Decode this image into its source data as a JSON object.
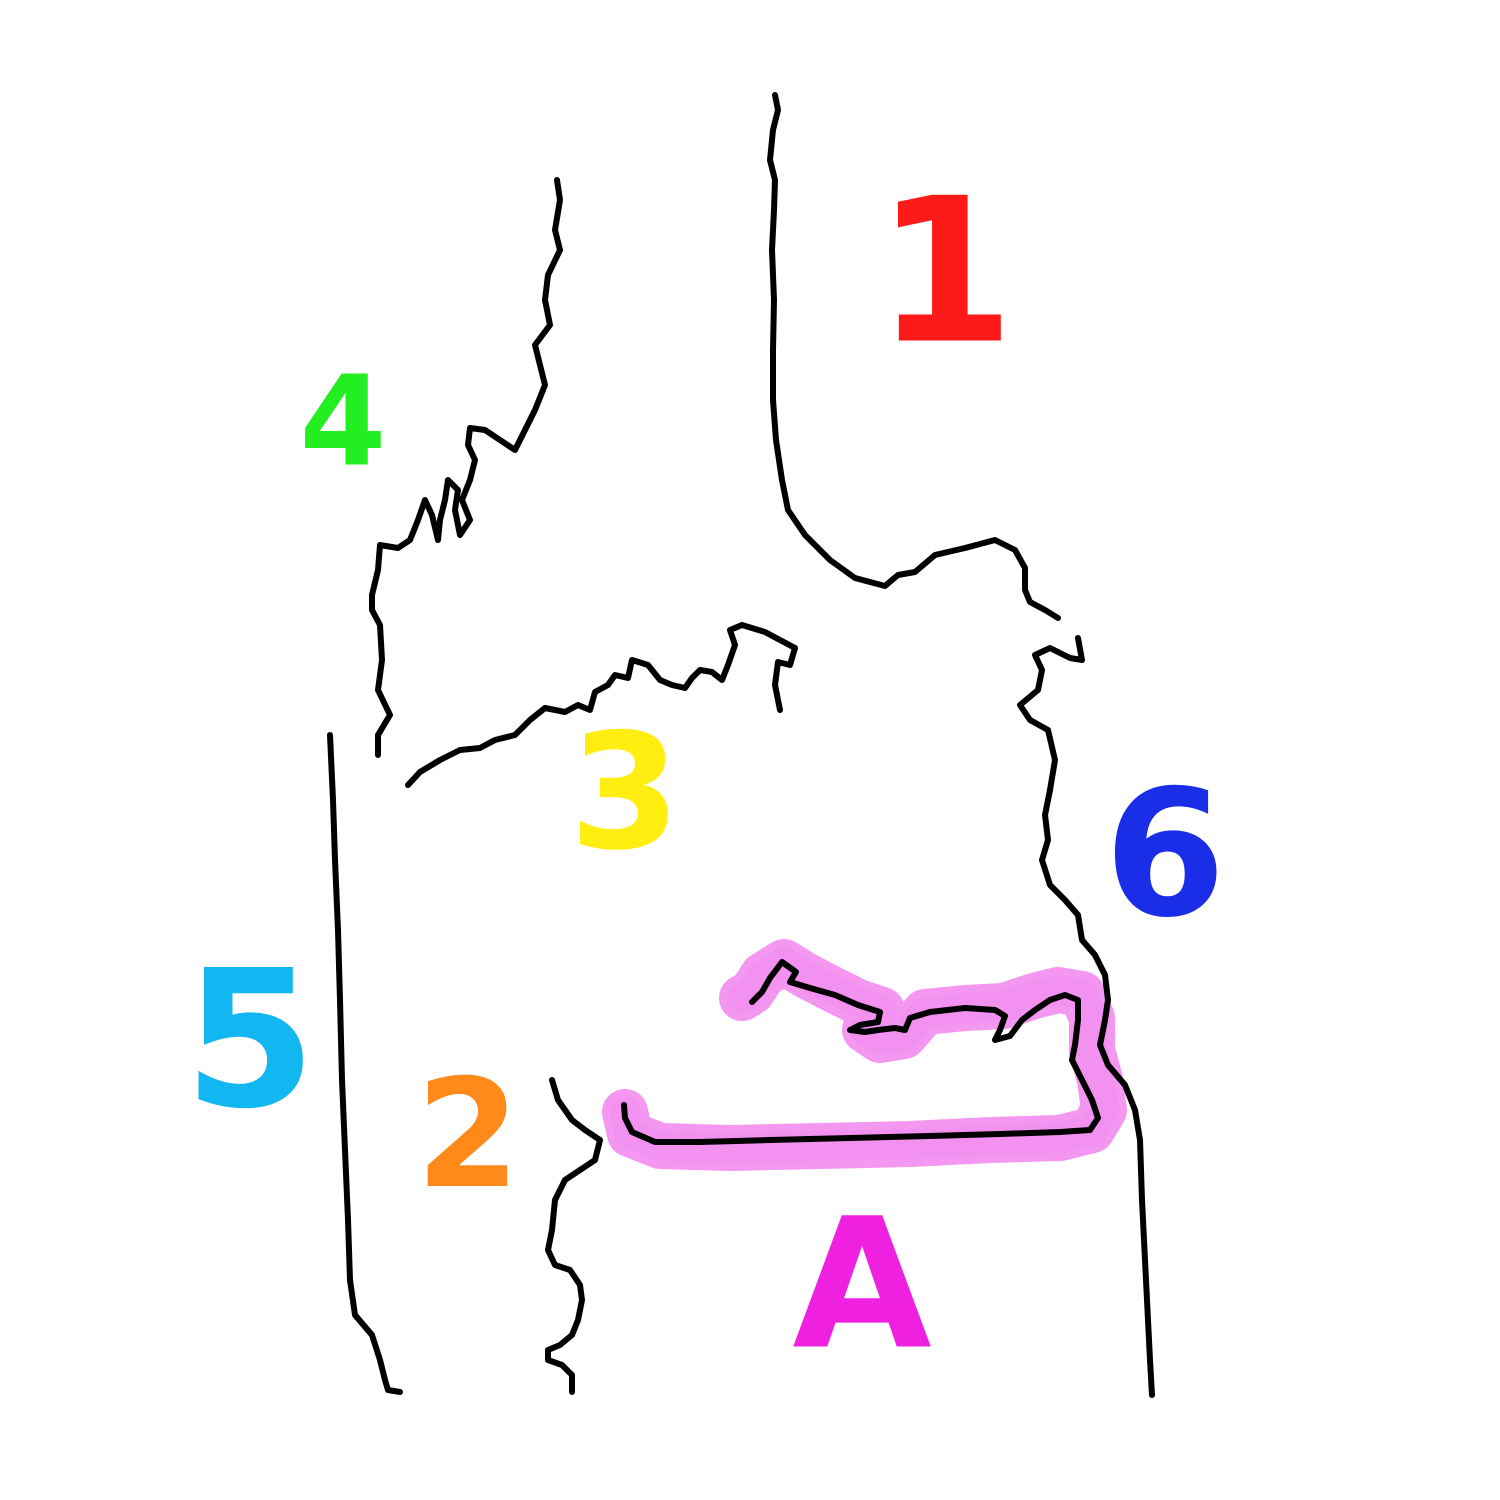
{
  "labels": {
    "region_1": {
      "text": "1",
      "color": "#ff1a1a"
    },
    "region_2": {
      "text": "2",
      "color": "#ff8a1a"
    },
    "region_3": {
      "text": "3",
      "color": "#ffee10"
    },
    "region_4": {
      "text": "4",
      "color": "#22ee22"
    },
    "region_5": {
      "text": "5",
      "color": "#12b6f0"
    },
    "region_6": {
      "text": "6",
      "color": "#1a2ee8"
    },
    "region_a": {
      "text": "A",
      "color": "#f020e0"
    }
  },
  "highlight_color": "#f28cf0",
  "line_color": "#000000"
}
